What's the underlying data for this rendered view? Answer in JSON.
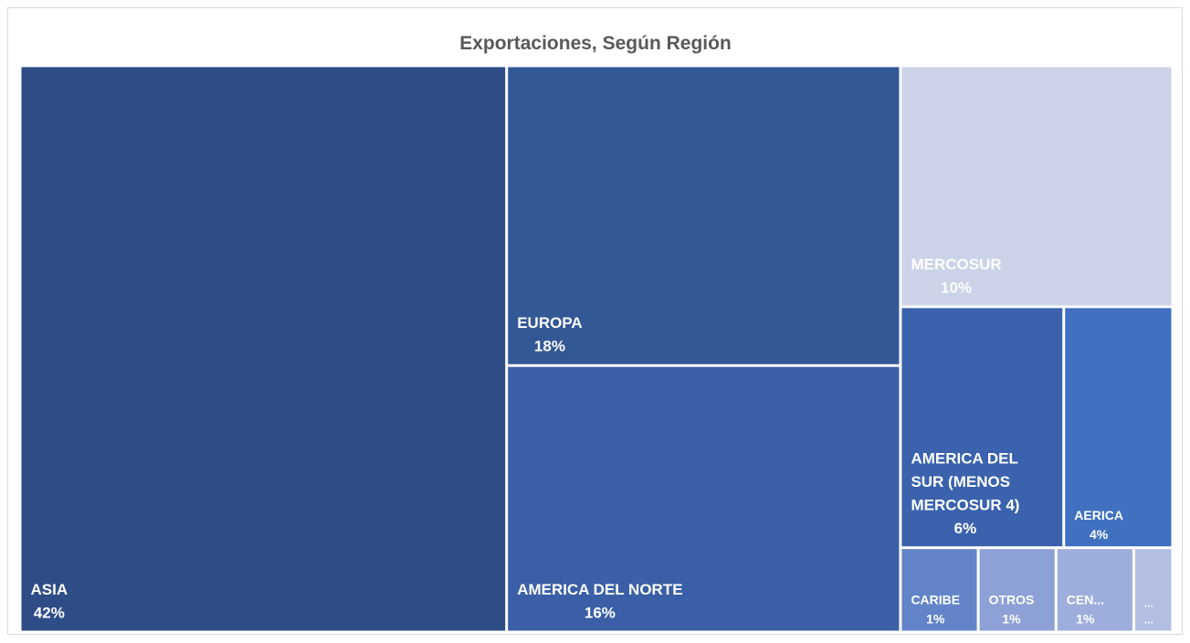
{
  "chart_data": {
    "type": "treemap",
    "title": "Exportaciones, Según Región",
    "categories": [
      "ASIA",
      "EUROPA",
      "AMERICA DEL NORTE",
      "MERCOSUR",
      "AMERICA DEL SUR (MENOS MERCOSUR 4)",
      "AERICA",
      "CARIBE",
      "OTROS",
      "CEN...",
      "..."
    ],
    "values": [
      42,
      18,
      16,
      10,
      6,
      4,
      1,
      1,
      1,
      0.5
    ],
    "value_labels": [
      "42%",
      "18%",
      "16%",
      "10%",
      "6%",
      "4%",
      "1%",
      "1%",
      "1%",
      "..."
    ],
    "colors": [
      "#2e4d87",
      "#335896",
      "#3a5fa6",
      "#ccd2e8",
      "#3a62ad",
      "#4070bf",
      "#6384c8",
      "#8da1d6",
      "#9eaedc",
      "#b3c0e4"
    ]
  }
}
